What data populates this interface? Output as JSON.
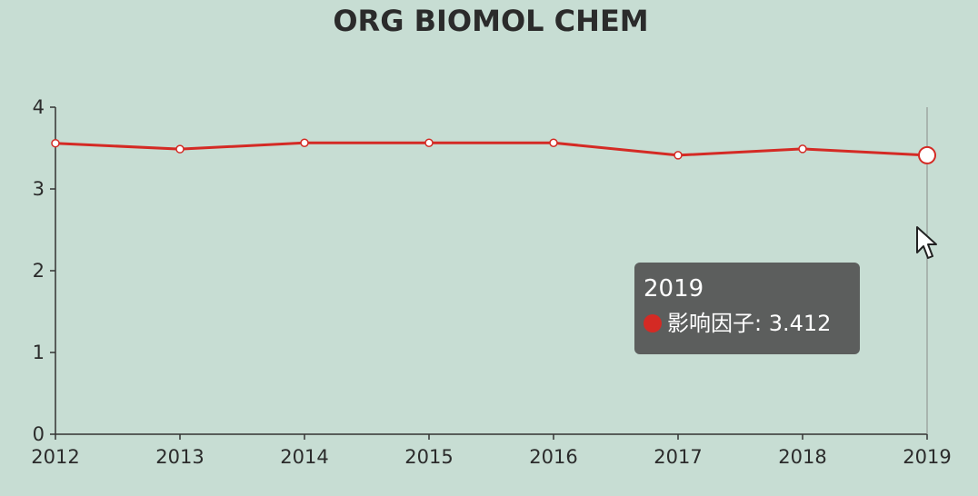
{
  "chart_data": {
    "type": "line",
    "title": "ORG BIOMOL CHEM",
    "categories": [
      "2012",
      "2013",
      "2014",
      "2015",
      "2016",
      "2017",
      "2018",
      "2019"
    ],
    "series": [
      {
        "name": "影响因子",
        "values": [
          3.559,
          3.487,
          3.564,
          3.564,
          3.564,
          3.412,
          3.49,
          3.412
        ],
        "color": "#d42a24"
      }
    ],
    "yticks": [
      "0",
      "1",
      "2",
      "3",
      "4"
    ],
    "ylim": [
      0,
      4
    ],
    "xlabel": "",
    "ylabel": "",
    "grid": false,
    "background_color": "#c7ddd3",
    "highlighted_index": 7
  },
  "tooltip": {
    "title": "2019",
    "series_label": "影响因子: 3.412"
  },
  "cursor_icon": "arrow-pointer-icon"
}
